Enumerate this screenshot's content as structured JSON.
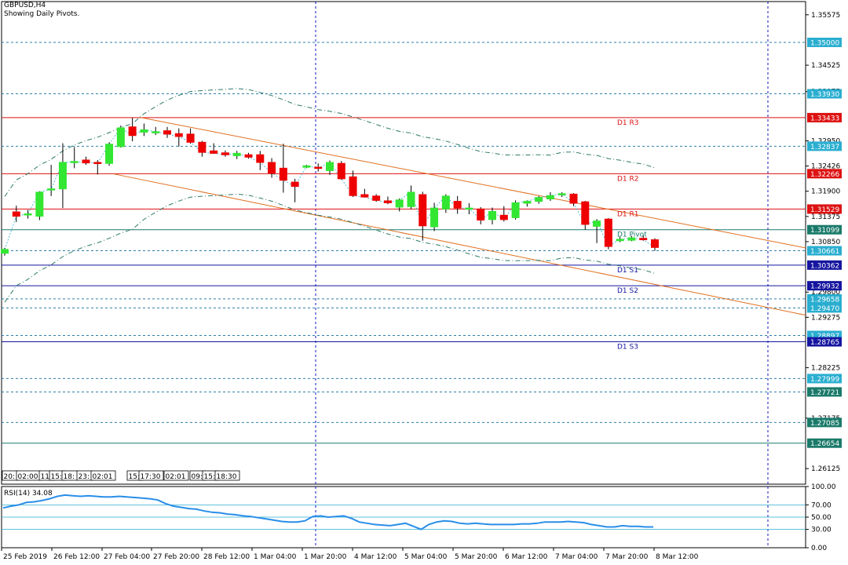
{
  "header": {
    "symbol": "GBPUSD,H4",
    "indicator": "Showing Daily Pivots."
  },
  "colors": {
    "bull": "#32e632",
    "bear": "#ee0000",
    "pivot_resistance": "#dd1111",
    "pivot_support": "#1515a0",
    "pivot_main": "#1a7a6a",
    "level_dash": "#2d7fa8",
    "channel": "#e07020",
    "ma": "#2f7a6a",
    "rsi": "#2a8ee8",
    "marker_blue": "#1a5fb4",
    "marker_red": "#dd1111",
    "marker_teal": "#1a7a6a",
    "marker_navy": "#1515a0",
    "marker_cyan": "#2aaed0"
  },
  "price_axis": {
    "ticks": [
      "1.35575",
      "1.34525",
      "1.33975",
      "1.32950",
      "1.32426",
      "1.31900",
      "1.31375",
      "1.30850",
      "1.29800",
      "1.29275",
      "1.28225",
      "1.27175",
      "1.26125"
    ]
  },
  "markers": [
    {
      "value": 1.35,
      "label": "1.35000",
      "color": "marker_cyan"
    },
    {
      "value": 1.3393,
      "label": "1.33930",
      "color": "marker_cyan"
    },
    {
      "value": 1.33433,
      "label": "1.33433",
      "color": "marker_red"
    },
    {
      "value": 1.32837,
      "label": "1.32837",
      "color": "marker_cyan"
    },
    {
      "value": 1.32266,
      "label": "1.32266",
      "color": "marker_red"
    },
    {
      "value": 1.31529,
      "label": "1.31529",
      "color": "marker_red"
    },
    {
      "value": 1.31099,
      "label": "1.31099",
      "color": "marker_teal"
    },
    {
      "value": 1.30661,
      "label": "1.30661",
      "color": "marker_cyan"
    },
    {
      "value": 1.30362,
      "label": "1.30362",
      "color": "marker_navy"
    },
    {
      "value": 1.29932,
      "label": "1.29932",
      "color": "marker_navy"
    },
    {
      "value": 1.29658,
      "label": "1.29658",
      "color": "marker_cyan"
    },
    {
      "value": 1.2947,
      "label": "1.29470",
      "color": "marker_cyan"
    },
    {
      "value": 1.28897,
      "label": "1.28897",
      "color": "marker_cyan"
    },
    {
      "value": 1.28765,
      "label": "1.28765",
      "color": "marker_navy"
    },
    {
      "value": 1.27999,
      "label": "1.27999",
      "color": "marker_cyan"
    },
    {
      "value": 1.27721,
      "label": "1.27721",
      "color": "marker_teal"
    },
    {
      "value": 1.27085,
      "label": "1.27085",
      "color": "marker_teal"
    },
    {
      "value": 1.26654,
      "label": "1.26654",
      "color": "marker_teal"
    }
  ],
  "pivot_labels": [
    {
      "value": 1.33433,
      "label": "D1 R3",
      "color": "pivot_resistance"
    },
    {
      "value": 1.32266,
      "label": "D1 R2",
      "color": "pivot_resistance"
    },
    {
      "value": 1.31529,
      "label": "D1 R1",
      "color": "pivot_resistance"
    },
    {
      "value": 1.31099,
      "label": "D1 Pivot",
      "color": "pivot_main"
    },
    {
      "value": 1.30362,
      "label": "D1 S1",
      "color": "pivot_support"
    },
    {
      "value": 1.29932,
      "label": "D1 S2",
      "color": "pivot_support"
    },
    {
      "value": 1.28765,
      "label": "D1 S3",
      "color": "pivot_support"
    }
  ],
  "session_labels": [
    "20:",
    "02:00",
    "11:",
    "15:",
    "18:",
    "23:",
    "02:01",
    "15:",
    "17:30",
    "02:01",
    "09:",
    "15:",
    "18:30"
  ],
  "rsi_panel": {
    "label": "RSI(14) 34.08",
    "ticks": [
      "100.00",
      "70.00",
      "50.00",
      "30.00",
      "0.00"
    ]
  },
  "time_axis": [
    "25 Feb 2019",
    "26 Feb 12:00",
    "27 Feb 04:00",
    "27 Feb 20:00",
    "28 Feb 12:00",
    "1 Mar 04:00",
    "1 Mar 20:00",
    "4 Mar 12:00",
    "5 Mar 04:00",
    "5 Mar 20:00",
    "6 Mar 12:00",
    "7 Mar 04:00",
    "7 Mar 20:00",
    "8 Mar 12:00"
  ],
  "chart_data": {
    "type": "candlestick",
    "symbol": "GBPUSD",
    "timeframe": "H4",
    "ylim": [
      1.258,
      1.3585
    ],
    "candles": [
      {
        "o": 1.3061,
        "h": 1.3072,
        "l": 1.3056,
        "c": 1.3069
      },
      {
        "o": 1.3147,
        "h": 1.316,
        "l": 1.3126,
        "c": 1.3138
      },
      {
        "o": 1.3141,
        "h": 1.3151,
        "l": 1.3133,
        "c": 1.3143
      },
      {
        "o": 1.3138,
        "h": 1.319,
        "l": 1.313,
        "c": 1.3188
      },
      {
        "o": 1.3193,
        "h": 1.3245,
        "l": 1.318,
        "c": 1.3195
      },
      {
        "o": 1.3195,
        "h": 1.329,
        "l": 1.3155,
        "c": 1.325
      },
      {
        "o": 1.325,
        "h": 1.3282,
        "l": 1.3238,
        "c": 1.3252
      },
      {
        "o": 1.3255,
        "h": 1.3262,
        "l": 1.3245,
        "c": 1.3249
      },
      {
        "o": 1.325,
        "h": 1.3255,
        "l": 1.3225,
        "c": 1.3249
      },
      {
        "o": 1.3248,
        "h": 1.3292,
        "l": 1.3243,
        "c": 1.3288
      },
      {
        "o": 1.3283,
        "h": 1.3327,
        "l": 1.3281,
        "c": 1.3322
      },
      {
        "o": 1.3324,
        "h": 1.3343,
        "l": 1.3294,
        "c": 1.3306
      },
      {
        "o": 1.3313,
        "h": 1.3331,
        "l": 1.3305,
        "c": 1.3318
      },
      {
        "o": 1.3313,
        "h": 1.3324,
        "l": 1.3307,
        "c": 1.3314
      },
      {
        "o": 1.3316,
        "h": 1.3324,
        "l": 1.3301,
        "c": 1.3309
      },
      {
        "o": 1.331,
        "h": 1.3321,
        "l": 1.3283,
        "c": 1.3304
      },
      {
        "o": 1.3309,
        "h": 1.3321,
        "l": 1.3289,
        "c": 1.3292
      },
      {
        "o": 1.3292,
        "h": 1.3295,
        "l": 1.3262,
        "c": 1.3271
      },
      {
        "o": 1.3274,
        "h": 1.329,
        "l": 1.3268,
        "c": 1.3269
      },
      {
        "o": 1.327,
        "h": 1.3275,
        "l": 1.3262,
        "c": 1.3266
      },
      {
        "o": 1.3264,
        "h": 1.3274,
        "l": 1.3257,
        "c": 1.3269
      },
      {
        "o": 1.3266,
        "h": 1.327,
        "l": 1.3258,
        "c": 1.3261
      },
      {
        "o": 1.3266,
        "h": 1.3274,
        "l": 1.3234,
        "c": 1.325
      },
      {
        "o": 1.325,
        "h": 1.3259,
        "l": 1.3218,
        "c": 1.3228
      },
      {
        "o": 1.3238,
        "h": 1.3289,
        "l": 1.3187,
        "c": 1.3213
      },
      {
        "o": 1.3209,
        "h": 1.3216,
        "l": 1.3167,
        "c": 1.32
      },
      {
        "o": 1.324,
        "h": 1.3245,
        "l": 1.3238,
        "c": 1.3243
      },
      {
        "o": 1.324,
        "h": 1.3248,
        "l": 1.3231,
        "c": 1.3238
      },
      {
        "o": 1.3233,
        "h": 1.3254,
        "l": 1.3224,
        "c": 1.325
      },
      {
        "o": 1.3248,
        "h": 1.3253,
        "l": 1.3214,
        "c": 1.3216
      },
      {
        "o": 1.322,
        "h": 1.3233,
        "l": 1.3178,
        "c": 1.3181
      },
      {
        "o": 1.3183,
        "h": 1.3195,
        "l": 1.3177,
        "c": 1.3178
      },
      {
        "o": 1.318,
        "h": 1.3184,
        "l": 1.3168,
        "c": 1.3171
      },
      {
        "o": 1.317,
        "h": 1.3179,
        "l": 1.3163,
        "c": 1.3166
      },
      {
        "o": 1.3157,
        "h": 1.3175,
        "l": 1.3148,
        "c": 1.3172
      },
      {
        "o": 1.3158,
        "h": 1.3202,
        "l": 1.3153,
        "c": 1.3188
      },
      {
        "o": 1.3183,
        "h": 1.3189,
        "l": 1.3087,
        "c": 1.3118
      },
      {
        "o": 1.3116,
        "h": 1.3166,
        "l": 1.3107,
        "c": 1.3155
      },
      {
        "o": 1.3153,
        "h": 1.3184,
        "l": 1.3145,
        "c": 1.318
      },
      {
        "o": 1.3169,
        "h": 1.318,
        "l": 1.3143,
        "c": 1.3155
      },
      {
        "o": 1.3155,
        "h": 1.3165,
        "l": 1.3142,
        "c": 1.3155
      },
      {
        "o": 1.3153,
        "h": 1.3157,
        "l": 1.3121,
        "c": 1.313
      },
      {
        "o": 1.3131,
        "h": 1.3156,
        "l": 1.3121,
        "c": 1.3148
      },
      {
        "o": 1.314,
        "h": 1.3159,
        "l": 1.3127,
        "c": 1.3131
      },
      {
        "o": 1.3135,
        "h": 1.3171,
        "l": 1.3131,
        "c": 1.3166
      },
      {
        "o": 1.3165,
        "h": 1.3171,
        "l": 1.3158,
        "c": 1.3169
      },
      {
        "o": 1.3169,
        "h": 1.318,
        "l": 1.3164,
        "c": 1.3177
      },
      {
        "o": 1.3174,
        "h": 1.3188,
        "l": 1.317,
        "c": 1.3181
      },
      {
        "o": 1.3183,
        "h": 1.3188,
        "l": 1.3178,
        "c": 1.3185
      },
      {
        "o": 1.3184,
        "h": 1.3186,
        "l": 1.3159,
        "c": 1.3165
      },
      {
        "o": 1.3168,
        "h": 1.317,
        "l": 1.311,
        "c": 1.3121
      },
      {
        "o": 1.3117,
        "h": 1.3132,
        "l": 1.3082,
        "c": 1.3128
      },
      {
        "o": 1.3132,
        "h": 1.3134,
        "l": 1.3069,
        "c": 1.3075
      },
      {
        "o": 1.3087,
        "h": 1.3095,
        "l": 1.3084,
        "c": 1.309
      },
      {
        "o": 1.3088,
        "h": 1.3097,
        "l": 1.3086,
        "c": 1.3093
      },
      {
        "o": 1.3092,
        "h": 1.3099,
        "l": 1.3087,
        "c": 1.3089
      },
      {
        "o": 1.3089,
        "h": 1.3092,
        "l": 1.3066,
        "c": 1.3073
      }
    ],
    "pivot_levels": {
      "R3": 1.33433,
      "R2": 1.32266,
      "R1": 1.31529,
      "Pivot": 1.31099,
      "S1": 1.30362,
      "S2": 1.29932,
      "S3": 1.28765
    },
    "rsi": {
      "name": "RSI(14)",
      "last": 34.08,
      "ylim": [
        0,
        100
      ],
      "levels": [
        70,
        50,
        30
      ],
      "values": [
        65,
        68,
        70,
        74,
        75,
        77,
        80,
        84,
        86,
        85,
        84,
        85,
        84,
        83,
        83,
        84,
        83,
        82,
        81,
        80,
        78,
        72,
        68,
        66,
        64,
        63,
        60,
        58,
        57,
        55,
        54,
        52,
        51,
        49,
        47,
        45,
        43,
        42,
        42,
        44,
        51,
        52,
        50,
        51,
        52,
        48,
        42,
        40,
        38,
        37,
        36,
        38,
        40,
        35,
        30,
        38,
        42,
        44,
        43,
        40,
        39,
        40,
        39,
        38,
        38,
        38,
        38,
        39,
        39,
        40,
        42,
        42,
        42,
        43,
        42,
        41,
        38,
        36,
        34,
        34,
        36,
        35,
        35,
        34,
        34
      ]
    }
  }
}
